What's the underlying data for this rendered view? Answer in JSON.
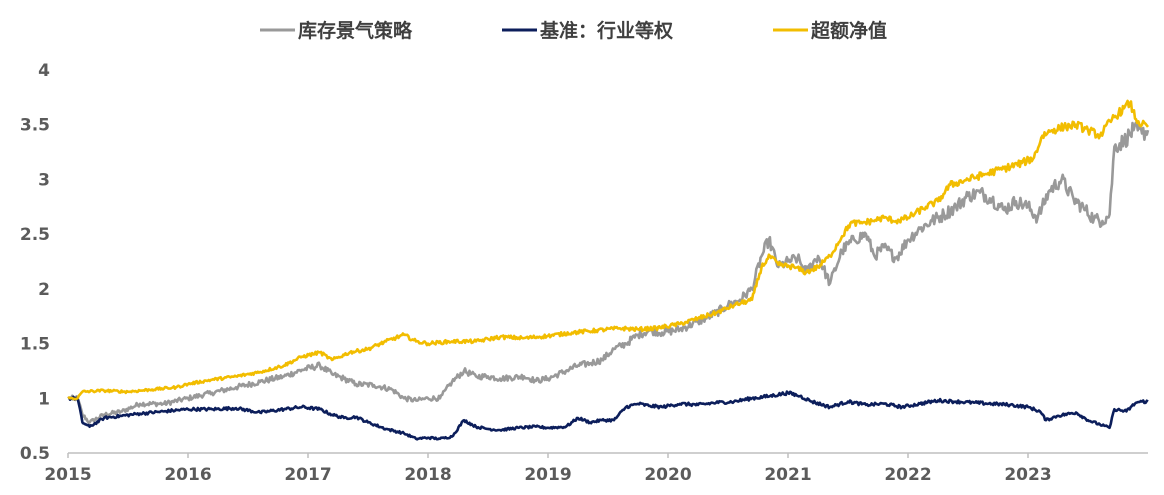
{
  "chart_data": {
    "type": "line",
    "title": "",
    "xlabel": "",
    "ylabel": "",
    "xlim": [
      2015.0,
      2024.0
    ],
    "ylim": [
      0.5,
      4.0
    ],
    "y_ticks": [
      0.5,
      1,
      1.5,
      2,
      2.5,
      3,
      3.5,
      4
    ],
    "y_tick_labels": [
      "0.5",
      "1",
      "1.5",
      "2",
      "2.5",
      "3",
      "3.5",
      "4"
    ],
    "x_ticks": [
      2015,
      2016,
      2017,
      2018,
      2019,
      2020,
      2021,
      2022,
      2023
    ],
    "x_tick_labels": [
      "2015",
      "2016",
      "2017",
      "2018",
      "2019",
      "2020",
      "2021",
      "2022",
      "2023"
    ],
    "grid": false,
    "legend_position": "top-center",
    "series": [
      {
        "name": "库存景气策略",
        "color": "#999999",
        "points": [
          [
            2015.0,
            1.0
          ],
          [
            2015.08,
            1.0
          ],
          [
            2015.12,
            0.85
          ],
          [
            2015.18,
            0.78
          ],
          [
            2015.3,
            0.85
          ],
          [
            2015.45,
            0.88
          ],
          [
            2015.6,
            0.95
          ],
          [
            2015.8,
            0.95
          ],
          [
            2016.0,
            1.0
          ],
          [
            2016.2,
            1.05
          ],
          [
            2016.4,
            1.1
          ],
          [
            2016.6,
            1.15
          ],
          [
            2016.8,
            1.2
          ],
          [
            2016.95,
            1.26
          ],
          [
            2017.1,
            1.3
          ],
          [
            2017.2,
            1.22
          ],
          [
            2017.3,
            1.18
          ],
          [
            2017.4,
            1.13
          ],
          [
            2017.55,
            1.12
          ],
          [
            2017.7,
            1.08
          ],
          [
            2017.8,
            1.0
          ],
          [
            2017.9,
            0.98
          ],
          [
            2018.0,
            1.0
          ],
          [
            2018.1,
            1.0
          ],
          [
            2018.2,
            1.15
          ],
          [
            2018.3,
            1.25
          ],
          [
            2018.4,
            1.2
          ],
          [
            2018.5,
            1.2
          ],
          [
            2018.6,
            1.18
          ],
          [
            2018.8,
            1.2
          ],
          [
            2018.9,
            1.16
          ],
          [
            2019.0,
            1.18
          ],
          [
            2019.15,
            1.25
          ],
          [
            2019.25,
            1.3
          ],
          [
            2019.35,
            1.32
          ],
          [
            2019.45,
            1.35
          ],
          [
            2019.55,
            1.45
          ],
          [
            2019.65,
            1.5
          ],
          [
            2019.75,
            1.58
          ],
          [
            2019.85,
            1.62
          ],
          [
            2019.95,
            1.6
          ],
          [
            2020.1,
            1.63
          ],
          [
            2020.25,
            1.7
          ],
          [
            2020.4,
            1.78
          ],
          [
            2020.5,
            1.85
          ],
          [
            2020.6,
            1.9
          ],
          [
            2020.7,
            2.0
          ],
          [
            2020.78,
            2.3
          ],
          [
            2020.84,
            2.45
          ],
          [
            2020.92,
            2.2
          ],
          [
            2021.0,
            2.25
          ],
          [
            2021.08,
            2.28
          ],
          [
            2021.15,
            2.15
          ],
          [
            2021.25,
            2.3
          ],
          [
            2021.35,
            2.05
          ],
          [
            2021.45,
            2.35
          ],
          [
            2021.55,
            2.45
          ],
          [
            2021.65,
            2.5
          ],
          [
            2021.72,
            2.3
          ],
          [
            2021.8,
            2.38
          ],
          [
            2021.9,
            2.28
          ],
          [
            2022.0,
            2.45
          ],
          [
            2022.1,
            2.55
          ],
          [
            2022.2,
            2.62
          ],
          [
            2022.3,
            2.68
          ],
          [
            2022.4,
            2.75
          ],
          [
            2022.5,
            2.85
          ],
          [
            2022.6,
            2.88
          ],
          [
            2022.7,
            2.82
          ],
          [
            2022.8,
            2.72
          ],
          [
            2022.9,
            2.8
          ],
          [
            2023.0,
            2.75
          ],
          [
            2023.08,
            2.65
          ],
          [
            2023.18,
            2.9
          ],
          [
            2023.28,
            3.0
          ],
          [
            2023.38,
            2.82
          ],
          [
            2023.48,
            2.72
          ],
          [
            2023.55,
            2.64
          ],
          [
            2023.62,
            2.62
          ],
          [
            2023.68,
            2.68
          ],
          [
            2023.72,
            3.3
          ],
          [
            2023.8,
            3.35
          ],
          [
            2023.88,
            3.45
          ],
          [
            2023.95,
            3.42
          ],
          [
            2024.0,
            3.45
          ]
        ]
      },
      {
        "name": "基准：行业等权",
        "color": "#0c1e5b",
        "points": [
          [
            2015.0,
            1.0
          ],
          [
            2015.08,
            1.0
          ],
          [
            2015.12,
            0.78
          ],
          [
            2015.18,
            0.74
          ],
          [
            2015.3,
            0.82
          ],
          [
            2015.45,
            0.84
          ],
          [
            2015.6,
            0.86
          ],
          [
            2015.8,
            0.88
          ],
          [
            2016.0,
            0.9
          ],
          [
            2016.2,
            0.9
          ],
          [
            2016.4,
            0.91
          ],
          [
            2016.6,
            0.87
          ],
          [
            2016.8,
            0.9
          ],
          [
            2016.95,
            0.92
          ],
          [
            2017.1,
            0.9
          ],
          [
            2017.2,
            0.85
          ],
          [
            2017.3,
            0.82
          ],
          [
            2017.4,
            0.83
          ],
          [
            2017.5,
            0.78
          ],
          [
            2017.65,
            0.72
          ],
          [
            2017.8,
            0.68
          ],
          [
            2017.9,
            0.63
          ],
          [
            2018.0,
            0.64
          ],
          [
            2018.1,
            0.63
          ],
          [
            2018.2,
            0.65
          ],
          [
            2018.3,
            0.8
          ],
          [
            2018.4,
            0.74
          ],
          [
            2018.5,
            0.72
          ],
          [
            2018.6,
            0.71
          ],
          [
            2018.75,
            0.73
          ],
          [
            2018.9,
            0.74
          ],
          [
            2019.0,
            0.73
          ],
          [
            2019.15,
            0.74
          ],
          [
            2019.25,
            0.82
          ],
          [
            2019.35,
            0.78
          ],
          [
            2019.45,
            0.8
          ],
          [
            2019.55,
            0.8
          ],
          [
            2019.65,
            0.92
          ],
          [
            2019.75,
            0.95
          ],
          [
            2019.85,
            0.93
          ],
          [
            2019.95,
            0.92
          ],
          [
            2020.1,
            0.95
          ],
          [
            2020.25,
            0.94
          ],
          [
            2020.4,
            0.96
          ],
          [
            2020.55,
            0.97
          ],
          [
            2020.7,
            1.0
          ],
          [
            2020.85,
            1.02
          ],
          [
            2021.0,
            1.05
          ],
          [
            2021.1,
            1.02
          ],
          [
            2021.2,
            0.97
          ],
          [
            2021.35,
            0.92
          ],
          [
            2021.5,
            0.97
          ],
          [
            2021.65,
            0.94
          ],
          [
            2021.8,
            0.95
          ],
          [
            2021.95,
            0.92
          ],
          [
            2022.1,
            0.95
          ],
          [
            2022.25,
            0.98
          ],
          [
            2022.4,
            0.97
          ],
          [
            2022.55,
            0.96
          ],
          [
            2022.7,
            0.95
          ],
          [
            2022.85,
            0.94
          ],
          [
            2023.0,
            0.92
          ],
          [
            2023.1,
            0.88
          ],
          [
            2023.15,
            0.8
          ],
          [
            2023.25,
            0.84
          ],
          [
            2023.4,
            0.87
          ],
          [
            2023.5,
            0.8
          ],
          [
            2023.6,
            0.76
          ],
          [
            2023.68,
            0.73
          ],
          [
            2023.72,
            0.9
          ],
          [
            2023.82,
            0.88
          ],
          [
            2023.9,
            0.96
          ],
          [
            2023.95,
            0.97
          ],
          [
            2024.0,
            0.97
          ]
        ]
      },
      {
        "name": "超额净值",
        "color": "#f2bd00",
        "points": [
          [
            2015.0,
            1.0
          ],
          [
            2015.08,
            1.0
          ],
          [
            2015.12,
            1.06
          ],
          [
            2015.3,
            1.07
          ],
          [
            2015.5,
            1.06
          ],
          [
            2015.7,
            1.08
          ],
          [
            2015.9,
            1.1
          ],
          [
            2016.0,
            1.13
          ],
          [
            2016.2,
            1.17
          ],
          [
            2016.4,
            1.2
          ],
          [
            2016.6,
            1.24
          ],
          [
            2016.8,
            1.3
          ],
          [
            2016.95,
            1.38
          ],
          [
            2017.1,
            1.42
          ],
          [
            2017.2,
            1.35
          ],
          [
            2017.35,
            1.42
          ],
          [
            2017.5,
            1.45
          ],
          [
            2017.65,
            1.52
          ],
          [
            2017.8,
            1.58
          ],
          [
            2017.9,
            1.52
          ],
          [
            2018.0,
            1.5
          ],
          [
            2018.2,
            1.52
          ],
          [
            2018.4,
            1.52
          ],
          [
            2018.6,
            1.56
          ],
          [
            2018.8,
            1.55
          ],
          [
            2019.0,
            1.57
          ],
          [
            2019.2,
            1.6
          ],
          [
            2019.4,
            1.62
          ],
          [
            2019.6,
            1.64
          ],
          [
            2019.75,
            1.63
          ],
          [
            2019.9,
            1.64
          ],
          [
            2020.1,
            1.68
          ],
          [
            2020.25,
            1.73
          ],
          [
            2020.4,
            1.78
          ],
          [
            2020.55,
            1.85
          ],
          [
            2020.7,
            1.9
          ],
          [
            2020.78,
            2.2
          ],
          [
            2020.85,
            2.3
          ],
          [
            2020.92,
            2.22
          ],
          [
            2021.05,
            2.2
          ],
          [
            2021.15,
            2.15
          ],
          [
            2021.25,
            2.2
          ],
          [
            2021.35,
            2.3
          ],
          [
            2021.45,
            2.48
          ],
          [
            2021.52,
            2.6
          ],
          [
            2021.6,
            2.6
          ],
          [
            2021.7,
            2.62
          ],
          [
            2021.8,
            2.65
          ],
          [
            2021.9,
            2.62
          ],
          [
            2022.0,
            2.65
          ],
          [
            2022.15,
            2.75
          ],
          [
            2022.25,
            2.8
          ],
          [
            2022.35,
            2.95
          ],
          [
            2022.5,
            3.0
          ],
          [
            2022.65,
            3.05
          ],
          [
            2022.8,
            3.1
          ],
          [
            2022.95,
            3.15
          ],
          [
            2023.05,
            3.2
          ],
          [
            2023.12,
            3.4
          ],
          [
            2023.2,
            3.45
          ],
          [
            2023.3,
            3.48
          ],
          [
            2023.4,
            3.5
          ],
          [
            2023.5,
            3.45
          ],
          [
            2023.6,
            3.4
          ],
          [
            2023.7,
            3.55
          ],
          [
            2023.8,
            3.65
          ],
          [
            2023.85,
            3.7
          ],
          [
            2023.9,
            3.55
          ],
          [
            2023.95,
            3.5
          ],
          [
            2024.0,
            3.48
          ]
        ]
      }
    ]
  }
}
